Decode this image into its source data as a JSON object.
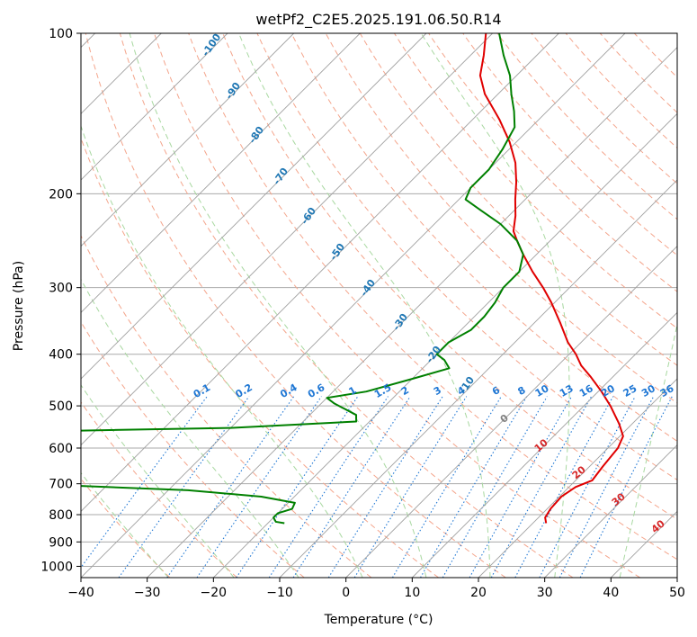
{
  "chart_data": {
    "type": "line",
    "title": "wetPf2_C2E5.2025.191.06.50.R14",
    "xlabel": "Temperature (°C)",
    "ylabel": "Pressure (hPa)",
    "xlim": [
      -40,
      50
    ],
    "ylim": [
      1050,
      100
    ],
    "y_scale": "log",
    "x_ticks": [
      -40,
      -30,
      -20,
      -10,
      0,
      10,
      20,
      30,
      40,
      50
    ],
    "x_tick_labels": [
      "−40",
      "−30",
      "−20",
      "−10",
      "0",
      "10",
      "20",
      "30",
      "40",
      "50"
    ],
    "y_ticks": [
      100,
      200,
      300,
      400,
      500,
      600,
      700,
      800,
      900,
      1000
    ],
    "y_tick_labels": [
      "100",
      "200",
      "300",
      "400",
      "500",
      "600",
      "700",
      "800",
      "900",
      "1000"
    ],
    "grid": true,
    "colors": {
      "temperature": "#e00000",
      "dewpoint": "#008000",
      "dry_adiabats": "#f4a58c",
      "moist_adiabats": "#a8d8a0",
      "mixing_ratio": "#1f77d4",
      "isotherms": "#a0a0a0",
      "isobars": "#aaaaaa",
      "height_labels": "#1f77b4",
      "ref_labels": "#d62728",
      "wb_zero": "#808080"
    },
    "series": [
      {
        "key": "temperature",
        "points": [
          {
            "p": 830,
            "t": 22
          },
          {
            "p": 810,
            "t": 21
          },
          {
            "p": 780,
            "t": 20.5
          },
          {
            "p": 740,
            "t": 20.3
          },
          {
            "p": 710,
            "t": 21
          },
          {
            "p": 690,
            "t": 22.5
          },
          {
            "p": 650,
            "t": 22
          },
          {
            "p": 600,
            "t": 21.5
          },
          {
            "p": 570,
            "t": 20.5
          },
          {
            "p": 540,
            "t": 18
          },
          {
            "p": 500,
            "t": 14
          },
          {
            "p": 470,
            "t": 10.5
          },
          {
            "p": 440,
            "t": 6.5
          },
          {
            "p": 420,
            "t": 3.5
          },
          {
            "p": 400,
            "t": 1
          },
          {
            "p": 380,
            "t": -2
          },
          {
            "p": 350,
            "t": -6
          },
          {
            "p": 320,
            "t": -10.5
          },
          {
            "p": 300,
            "t": -14
          },
          {
            "p": 280,
            "t": -18
          },
          {
            "p": 260,
            "t": -22
          },
          {
            "p": 245,
            "t": -25
          },
          {
            "p": 235,
            "t": -27
          },
          {
            "p": 220,
            "t": -29
          },
          {
            "p": 205,
            "t": -31.5
          },
          {
            "p": 190,
            "t": -34
          },
          {
            "p": 175,
            "t": -37
          },
          {
            "p": 160,
            "t": -41
          },
          {
            "p": 145,
            "t": -46
          },
          {
            "p": 130,
            "t": -52
          },
          {
            "p": 120,
            "t": -55.5
          },
          {
            "p": 110,
            "t": -58
          },
          {
            "p": 100,
            "t": -61
          }
        ]
      },
      {
        "key": "dewpoint",
        "points": [
          {
            "p": 830,
            "t": -17.5
          },
          {
            "p": 825,
            "t": -19
          },
          {
            "p": 810,
            "t": -20
          },
          {
            "p": 795,
            "t": -20
          },
          {
            "p": 780,
            "t": -18.5
          },
          {
            "p": 760,
            "t": -19
          },
          {
            "p": 740,
            "t": -25
          },
          {
            "p": 720,
            "t": -37
          },
          {
            "p": 702,
            "t": -60
          },
          {
            "p": 700,
            "t": -85
          },
          {
            "p": 560,
            "t": -75
          },
          {
            "p": 550,
            "t": -40
          },
          {
            "p": 535,
            "t": -22
          },
          {
            "p": 520,
            "t": -23
          },
          {
            "p": 495,
            "t": -28
          },
          {
            "p": 483,
            "t": -30
          },
          {
            "p": 470,
            "t": -25
          },
          {
            "p": 445,
            "t": -20
          },
          {
            "p": 425,
            "t": -16
          },
          {
            "p": 410,
            "t": -18
          },
          {
            "p": 400,
            "t": -20
          },
          {
            "p": 380,
            "t": -20
          },
          {
            "p": 360,
            "t": -18.5
          },
          {
            "p": 340,
            "t": -18.5
          },
          {
            "p": 320,
            "t": -19
          },
          {
            "p": 300,
            "t": -20
          },
          {
            "p": 280,
            "t": -20
          },
          {
            "p": 260,
            "t": -22
          },
          {
            "p": 245,
            "t": -25
          },
          {
            "p": 228,
            "t": -30
          },
          {
            "p": 215,
            "t": -35
          },
          {
            "p": 205,
            "t": -39
          },
          {
            "p": 195,
            "t": -40
          },
          {
            "p": 180,
            "t": -40
          },
          {
            "p": 165,
            "t": -41
          },
          {
            "p": 150,
            "t": -42.5
          },
          {
            "p": 140,
            "t": -45
          },
          {
            "p": 130,
            "t": -48
          },
          {
            "p": 120,
            "t": -51
          },
          {
            "p": 110,
            "t": -55
          },
          {
            "p": 100,
            "t": -59
          }
        ]
      }
    ],
    "dry_adiabats_c": [
      -30,
      -20,
      -10,
      0,
      10,
      20,
      30,
      40,
      50,
      60,
      70,
      80,
      90,
      100,
      110,
      120,
      130,
      140,
      150,
      160,
      170,
      180
    ],
    "moist_adiabats_c": [
      -30,
      -20,
      -10,
      0,
      10,
      20,
      30,
      40
    ],
    "mixing_ratio_lines": [
      0.1,
      0.2,
      0.4,
      0.6,
      1,
      1.5,
      2,
      3,
      4,
      6,
      8,
      10,
      13,
      16,
      20,
      25,
      30,
      36
    ],
    "mixing_ratio_labels": [
      "0.1",
      "0.2",
      "0.4",
      "0.6",
      "1",
      "1.5",
      "2",
      "3",
      "4",
      "6",
      "8",
      "10",
      "13",
      "16",
      "20",
      "25",
      "30",
      "36"
    ],
    "height_labels": [
      "-100",
      "-90",
      "-80",
      "-70",
      "-60",
      "-50",
      "-40",
      "-30",
      "-20",
      "-10"
    ],
    "ref_labels": [
      "10",
      "20",
      "30",
      "40"
    ],
    "wb_zero_label": "0"
  }
}
